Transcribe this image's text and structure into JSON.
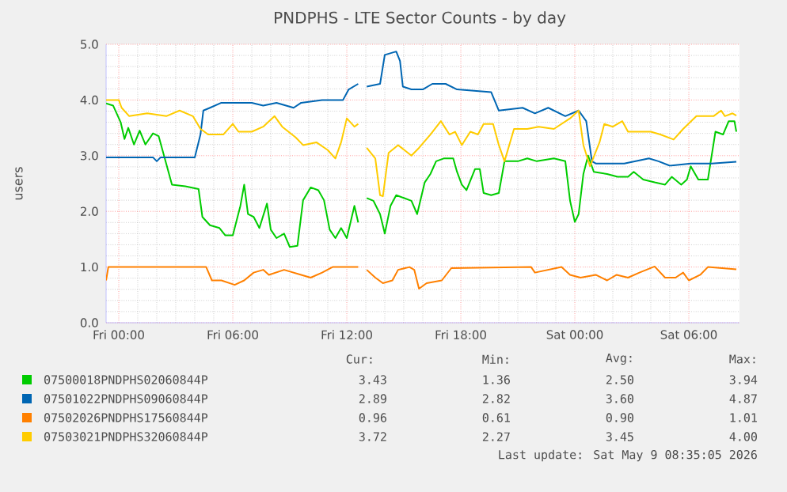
{
  "chart_data": {
    "type": "line",
    "title": "PNDPHS - LTE Sector Counts - by day",
    "ylabel": "users",
    "xlim": [
      "2026-05-07T23:20",
      "2026-05-09T08:40"
    ],
    "ylim": [
      0,
      5
    ],
    "xticks": [
      {
        "value": "2026-05-08T00:00",
        "label": "Fri 00:00"
      },
      {
        "value": "2026-05-08T06:00",
        "label": "Fri 06:00"
      },
      {
        "value": "2026-05-08T12:00",
        "label": "Fri 12:00"
      },
      {
        "value": "2026-05-08T18:00",
        "label": "Fri 18:00"
      },
      {
        "value": "2026-05-09T00:00",
        "label": "Sat 00:00"
      },
      {
        "value": "2026-05-09T06:00",
        "label": "Sat 06:00"
      }
    ],
    "yticks": [
      {
        "value": 0,
        "label": "0.0"
      },
      {
        "value": 1,
        "label": "1.0"
      },
      {
        "value": 2,
        "label": "2.0"
      },
      {
        "value": 3,
        "label": "3.0"
      },
      {
        "value": 4,
        "label": "4.0"
      },
      {
        "value": 5,
        "label": "5.0"
      }
    ],
    "grid": true,
    "legend": "bottom",
    "series": [
      {
        "name": "07500018PNDPHS02060844P",
        "color": "#00cc00",
        "x": [
          "2026-05-07T23:20",
          "2026-05-07T23:42",
          "2026-05-08T00:06",
          "2026-05-08T00:18",
          "2026-05-08T00:30",
          "2026-05-08T00:48",
          "2026-05-08T01:06",
          "2026-05-08T01:24",
          "2026-05-08T01:48",
          "2026-05-08T02:06",
          "2026-05-08T02:30",
          "2026-05-08T02:48",
          "2026-05-08T03:30",
          "2026-05-08T04:12",
          "2026-05-08T04:24",
          "2026-05-08T04:48",
          "2026-05-08T05:18",
          "2026-05-08T05:36",
          "2026-05-08T06:00",
          "2026-05-08T06:24",
          "2026-05-08T06:36",
          "2026-05-08T06:48",
          "2026-05-08T07:06",
          "2026-05-08T07:24",
          "2026-05-08T07:48",
          "2026-05-08T08:00",
          "2026-05-08T08:18",
          "2026-05-08T08:42",
          "2026-05-08T09:00",
          "2026-05-08T09:24",
          "2026-05-08T09:42",
          "2026-05-08T10:06",
          "2026-05-08T10:30",
          "2026-05-08T10:48",
          "2026-05-08T11:06",
          "2026-05-08T11:24",
          "2026-05-08T11:42",
          "2026-05-08T12:00",
          "2026-05-08T12:24",
          "2026-05-08T12:36",
          "2026-05-08T12:48",
          "2026-05-08T13:03",
          "2026-05-08T13:24",
          "2026-05-08T13:45",
          "2026-05-08T14:00",
          "2026-05-08T14:18",
          "2026-05-08T14:36",
          "2026-05-08T15:00",
          "2026-05-08T15:24",
          "2026-05-08T15:42",
          "2026-05-08T16:06",
          "2026-05-08T16:24",
          "2026-05-08T16:42",
          "2026-05-08T17:06",
          "2026-05-08T17:36",
          "2026-05-08T17:48",
          "2026-05-08T18:03",
          "2026-05-08T18:18",
          "2026-05-08T18:45",
          "2026-05-08T19:00",
          "2026-05-08T19:12",
          "2026-05-08T19:36",
          "2026-05-08T20:00",
          "2026-05-08T20:18",
          "2026-05-08T21:00",
          "2026-05-08T21:30",
          "2026-05-08T22:00",
          "2026-05-08T22:54",
          "2026-05-08T23:30",
          "2026-05-08T23:45",
          "2026-05-09T00:00",
          "2026-05-09T00:12",
          "2026-05-09T00:27",
          "2026-05-09T00:42",
          "2026-05-09T01:00",
          "2026-05-09T01:42",
          "2026-05-09T02:15",
          "2026-05-09T02:48",
          "2026-05-09T03:06",
          "2026-05-09T03:36",
          "2026-05-09T04:12",
          "2026-05-09T04:45",
          "2026-05-09T05:06",
          "2026-05-09T05:36",
          "2026-05-09T05:54",
          "2026-05-09T06:06",
          "2026-05-09T06:30",
          "2026-05-09T07:00",
          "2026-05-09T07:24",
          "2026-05-09T07:48",
          "2026-05-09T08:06",
          "2026-05-09T08:24",
          "2026-05-09T08:30"
        ],
        "values": [
          3.94,
          3.9,
          3.6,
          3.3,
          3.5,
          3.2,
          3.45,
          3.2,
          3.4,
          3.35,
          2.85,
          2.48,
          2.45,
          2.4,
          1.9,
          1.75,
          1.7,
          1.57,
          1.57,
          2.1,
          2.48,
          1.95,
          1.9,
          1.7,
          2.14,
          1.67,
          1.52,
          1.6,
          1.36,
          1.38,
          2.2,
          2.43,
          2.38,
          2.2,
          1.67,
          1.52,
          1.7,
          1.52,
          2.1,
          1.8,
          null,
          2.24,
          2.19,
          1.95,
          1.6,
          2.1,
          2.29,
          2.24,
          2.19,
          1.95,
          2.52,
          2.67,
          2.9,
          2.95,
          2.95,
          2.71,
          2.48,
          2.38,
          2.76,
          2.76,
          2.33,
          2.29,
          2.33,
          2.9,
          2.9,
          2.95,
          2.9,
          2.95,
          2.9,
          2.19,
          1.81,
          1.95,
          2.67,
          3.0,
          2.71,
          2.67,
          2.62,
          2.62,
          2.71,
          2.57,
          2.52,
          2.48,
          2.62,
          2.48,
          2.57,
          2.81,
          2.57,
          2.57,
          3.43,
          3.38,
          3.62,
          3.62,
          3.43
        ]
      },
      {
        "name": "07501022PNDPHS09060844P",
        "color": "#0066b3",
        "x": [
          "2026-05-07T23:20",
          "2026-05-08T01:48",
          "2026-05-08T02:00",
          "2026-05-08T02:12",
          "2026-05-08T04:00",
          "2026-05-08T04:18",
          "2026-05-08T04:27",
          "2026-05-08T04:48",
          "2026-05-08T05:24",
          "2026-05-08T07:00",
          "2026-05-08T07:36",
          "2026-05-08T08:18",
          "2026-05-08T09:12",
          "2026-05-08T09:36",
          "2026-05-08T10:42",
          "2026-05-08T11:48",
          "2026-05-08T12:06",
          "2026-05-08T12:36",
          "2026-05-08T12:48",
          "2026-05-08T13:03",
          "2026-05-08T13:45",
          "2026-05-08T14:00",
          "2026-05-08T14:36",
          "2026-05-08T14:48",
          "2026-05-08T14:57",
          "2026-05-08T15:24",
          "2026-05-08T16:00",
          "2026-05-08T16:30",
          "2026-05-08T17:12",
          "2026-05-08T17:48",
          "2026-05-08T19:36",
          "2026-05-08T20:00",
          "2026-05-08T21:15",
          "2026-05-08T21:54",
          "2026-05-08T22:36",
          "2026-05-08T23:30",
          "2026-05-09T00:12",
          "2026-05-09T00:36",
          "2026-05-09T00:54",
          "2026-05-09T01:06",
          "2026-05-09T02:36",
          "2026-05-09T03:54",
          "2026-05-09T04:24",
          "2026-05-09T05:00",
          "2026-05-09T06:06",
          "2026-05-09T07:12",
          "2026-05-09T08:30"
        ],
        "values": [
          2.97,
          2.97,
          2.9,
          2.97,
          2.97,
          3.38,
          3.81,
          3.86,
          3.95,
          3.95,
          3.9,
          3.95,
          3.86,
          3.95,
          4.0,
          4.0,
          4.19,
          4.29,
          null,
          4.24,
          4.29,
          4.81,
          4.87,
          4.7,
          4.24,
          4.19,
          4.19,
          4.29,
          4.29,
          4.19,
          4.14,
          3.81,
          3.86,
          3.76,
          3.86,
          3.71,
          3.81,
          3.62,
          2.9,
          2.86,
          2.86,
          2.95,
          2.9,
          2.82,
          2.86,
          2.86,
          2.89
        ]
      },
      {
        "name": "07502026PNDPHS17560844P",
        "color": "#ff8000",
        "x": [
          "2026-05-07T23:20",
          "2026-05-07T23:27",
          "2026-05-08T04:36",
          "2026-05-08T04:54",
          "2026-05-08T05:24",
          "2026-05-08T06:06",
          "2026-05-08T06:36",
          "2026-05-08T07:06",
          "2026-05-08T07:36",
          "2026-05-08T07:54",
          "2026-05-08T08:42",
          "2026-05-08T09:36",
          "2026-05-08T10:06",
          "2026-05-08T10:42",
          "2026-05-08T11:15",
          "2026-05-08T12:36",
          "2026-05-08T12:48",
          "2026-05-08T13:03",
          "2026-05-08T13:30",
          "2026-05-08T13:54",
          "2026-05-08T14:24",
          "2026-05-08T14:42",
          "2026-05-08T15:18",
          "2026-05-08T15:33",
          "2026-05-08T15:48",
          "2026-05-08T16:12",
          "2026-05-08T17:00",
          "2026-05-08T17:30",
          "2026-05-08T21:42",
          "2026-05-08T21:54",
          "2026-05-08T23:18",
          "2026-05-08T23:45",
          "2026-05-09T00:18",
          "2026-05-09T01:06",
          "2026-05-09T01:42",
          "2026-05-09T02:12",
          "2026-05-09T02:48",
          "2026-05-09T03:24",
          "2026-05-09T04:12",
          "2026-05-09T04:45",
          "2026-05-09T05:18",
          "2026-05-09T05:42",
          "2026-05-09T06:00",
          "2026-05-09T06:36",
          "2026-05-09T07:00",
          "2026-05-09T08:30"
        ],
        "values": [
          0.76,
          1.0,
          1.0,
          0.76,
          0.76,
          0.68,
          0.76,
          0.9,
          0.95,
          0.86,
          0.95,
          0.86,
          0.81,
          0.9,
          1.0,
          1.0,
          null,
          0.95,
          0.81,
          0.71,
          0.76,
          0.95,
          1.0,
          0.95,
          0.61,
          0.71,
          0.76,
          0.98,
          1.0,
          0.9,
          1.0,
          0.86,
          0.81,
          0.86,
          0.76,
          0.86,
          0.81,
          0.9,
          1.01,
          0.81,
          0.81,
          0.9,
          0.76,
          0.86,
          1.0,
          0.96
        ]
      },
      {
        "name": "07503021PNDPHS32060844P",
        "color": "#ffcc00",
        "x": [
          "2026-05-07T23:20",
          "2026-05-08T00:00",
          "2026-05-08T00:09",
          "2026-05-08T00:33",
          "2026-05-08T01:30",
          "2026-05-08T02:30",
          "2026-05-08T03:12",
          "2026-05-08T03:54",
          "2026-05-08T04:18",
          "2026-05-08T04:42",
          "2026-05-08T05:30",
          "2026-05-08T06:00",
          "2026-05-08T06:18",
          "2026-05-08T07:00",
          "2026-05-08T07:36",
          "2026-05-08T08:12",
          "2026-05-08T08:36",
          "2026-05-08T09:18",
          "2026-05-08T09:42",
          "2026-05-08T10:24",
          "2026-05-08T11:00",
          "2026-05-08T11:24",
          "2026-05-08T11:42",
          "2026-05-08T12:00",
          "2026-05-08T12:24",
          "2026-05-08T12:36",
          "2026-05-08T12:48",
          "2026-05-08T13:03",
          "2026-05-08T13:30",
          "2026-05-08T13:45",
          "2026-05-08T13:54",
          "2026-05-08T14:12",
          "2026-05-08T14:42",
          "2026-05-08T15:24",
          "2026-05-08T15:48",
          "2026-05-08T16:24",
          "2026-05-08T16:57",
          "2026-05-08T17:24",
          "2026-05-08T17:42",
          "2026-05-08T18:03",
          "2026-05-08T18:30",
          "2026-05-08T18:54",
          "2026-05-08T19:12",
          "2026-05-08T19:42",
          "2026-05-08T20:00",
          "2026-05-08T20:18",
          "2026-05-08T20:48",
          "2026-05-08T21:30",
          "2026-05-08T22:06",
          "2026-05-08T22:54",
          "2026-05-08T23:45",
          "2026-05-09T00:12",
          "2026-05-09T00:27",
          "2026-05-09T00:48",
          "2026-05-09T01:18",
          "2026-05-09T01:33",
          "2026-05-09T02:00",
          "2026-05-09T02:30",
          "2026-05-09T02:48",
          "2026-05-09T04:00",
          "2026-05-09T04:30",
          "2026-05-09T05:12",
          "2026-05-09T05:42",
          "2026-05-09T06:24",
          "2026-05-09T07:18",
          "2026-05-09T07:42",
          "2026-05-09T07:54",
          "2026-05-09T08:18",
          "2026-05-09T08:30"
        ],
        "values": [
          4.0,
          4.0,
          3.86,
          3.71,
          3.76,
          3.71,
          3.81,
          3.71,
          3.48,
          3.38,
          3.38,
          3.57,
          3.43,
          3.43,
          3.52,
          3.71,
          3.52,
          3.33,
          3.19,
          3.24,
          3.1,
          2.95,
          3.24,
          3.67,
          3.52,
          3.57,
          null,
          3.14,
          2.95,
          2.29,
          2.27,
          3.05,
          3.19,
          3.0,
          3.14,
          3.38,
          3.62,
          3.38,
          3.43,
          3.19,
          3.43,
          3.38,
          3.57,
          3.57,
          3.19,
          2.9,
          3.48,
          3.48,
          3.52,
          3.48,
          3.67,
          3.81,
          3.19,
          2.81,
          3.24,
          3.57,
          3.52,
          3.62,
          3.43,
          3.43,
          3.38,
          3.29,
          3.48,
          3.71,
          3.71,
          3.81,
          3.71,
          3.76,
          3.72
        ]
      }
    ],
    "annotations": [
      "Cur:",
      "Min:",
      "Avg:",
      "Max:",
      "3.43",
      "1.36",
      "2.50",
      "3.94",
      "2.89",
      "2.82",
      "3.60",
      "4.87",
      "0.96",
      "0.61",
      "0.90",
      "1.01",
      "3.72",
      "2.27",
      "3.45",
      "4.00",
      "Last update: Sat May  9 08:35:05 2026"
    ]
  }
}
